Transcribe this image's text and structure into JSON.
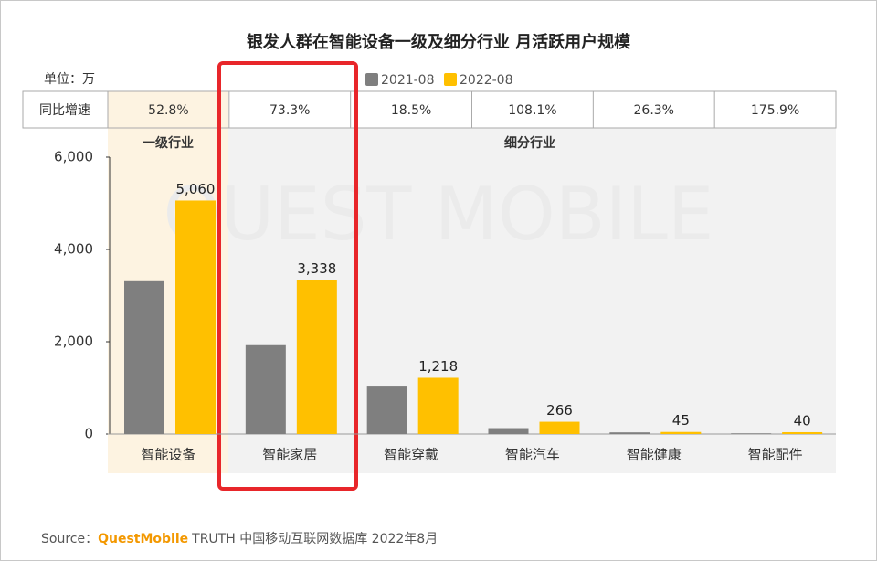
{
  "chart_data": {
    "type": "bar",
    "title": "银发人群在智能设备一级及细分行业 月活跃用户规模",
    "unit": "单位：万",
    "categories": [
      "智能设备",
      "智能家居",
      "智能穿戴",
      "智能汽车",
      "智能健康",
      "智能配件"
    ],
    "series": [
      {
        "name": "2021-08",
        "color": "#7f7f7f",
        "values": [
          3311,
          1926,
          1028,
          128,
          36,
          15
        ]
      },
      {
        "name": "2022-08",
        "color": "#ffc000",
        "values": [
          5060,
          3338,
          1218,
          266,
          45,
          40
        ],
        "value_labels": [
          "5,060",
          "3,338",
          "1,218",
          "266",
          "45",
          "40"
        ]
      }
    ],
    "ylim": [
      0,
      6000
    ],
    "yticks": [
      0,
      {
        "value": 2000,
        "label": "2,000"
      },
      {
        "value": 4000,
        "label": "4,000"
      },
      {
        "value": 6000,
        "label": "6,000"
      }
    ],
    "yoy_label": "同比增速",
    "yoy": [
      "52.8%",
      "73.3%",
      "18.5%",
      "108.1%",
      "26.3%",
      "175.9%"
    ],
    "groups": [
      "一级行业",
      "细分行业"
    ],
    "legend_position": "top",
    "watermark": "QUEST MOBILE",
    "source": {
      "prefix": "Source：",
      "brand": "QuestMobile",
      "text": "TRUTH 中国移动互联网数据库 2022年8月"
    }
  }
}
